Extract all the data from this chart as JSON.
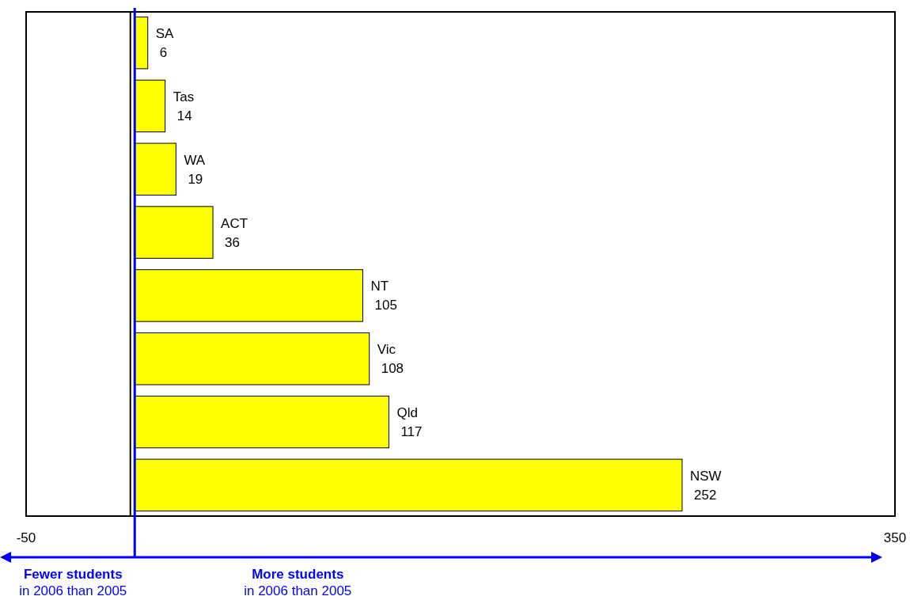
{
  "chart_data": {
    "type": "bar",
    "orientation": "horizontal",
    "categories": [
      "SA",
      "Tas",
      "WA",
      "ACT",
      "NT",
      "Vic",
      "Qld",
      "NSW"
    ],
    "values": [
      6,
      14,
      19,
      36,
      105,
      108,
      117,
      252
    ],
    "color": "#ffff00",
    "xlim": [
      -50,
      350
    ],
    "xticks": [
      -50,
      350
    ],
    "data_labels": true,
    "grid": false,
    "ref_lines": [
      {
        "axis": "x",
        "value": -2,
        "label": null,
        "color": "#000000"
      },
      {
        "axis": "x",
        "value": 0,
        "label": null,
        "color": "#0000ff"
      }
    ],
    "annotations": [
      "Fewer students",
      "in 2006 than 2005",
      "More students",
      "in 2006 than 2005"
    ]
  }
}
